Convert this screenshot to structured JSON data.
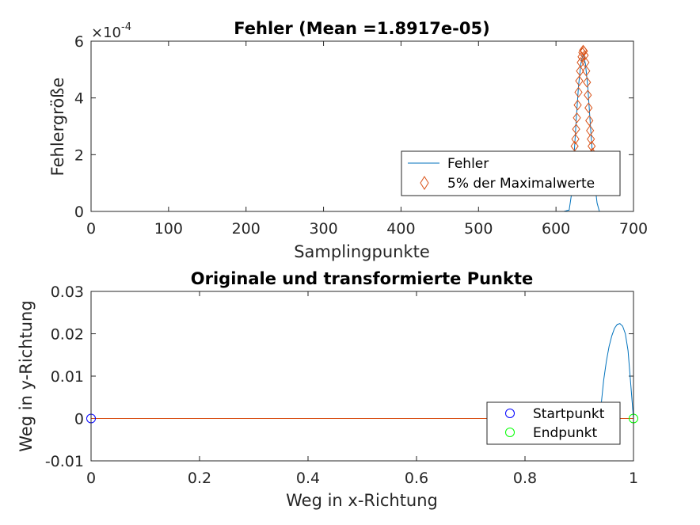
{
  "chart_data": [
    {
      "type": "line",
      "title": "Fehler (Mean =1.8917e-05)",
      "xlabel": "Samplingpunkte",
      "ylabel": "Fehlergröße",
      "y_exponent_base": "×10",
      "y_exponent_power": "-4",
      "xlim": [
        0,
        700
      ],
      "ylim": [
        0,
        6
      ],
      "xticks": [
        0,
        100,
        200,
        300,
        400,
        500,
        600,
        700
      ],
      "yticks": [
        0,
        2,
        4,
        6
      ],
      "xtick_labels": [
        "0",
        "100",
        "200",
        "300",
        "400",
        "500",
        "600",
        "700"
      ],
      "ytick_labels": [
        "0",
        "2",
        "4",
        "6"
      ],
      "legend_position": "bottom-right",
      "series": [
        {
          "name": "Fehler",
          "color": "#0072BD",
          "marker": "none",
          "x": [
            0,
            610,
            617,
            620,
            623,
            626,
            629,
            632,
            635,
            638,
            641,
            644,
            647,
            650,
            653,
            656,
            660,
            700
          ],
          "values": [
            0,
            0,
            0.05,
            0.6,
            1.8,
            3.2,
            4.4,
            5.2,
            5.55,
            5.2,
            4.4,
            3.2,
            2.0,
            1.0,
            0.3,
            0,
            0,
            0
          ]
        },
        {
          "name": "5% der Maximalwerte",
          "color": "#D95319",
          "marker": "diamond",
          "x": [
            624,
            625,
            626,
            627,
            628,
            629,
            630,
            631,
            632,
            633,
            634,
            635,
            636,
            637,
            638,
            639,
            640,
            641,
            642,
            643,
            644,
            645,
            646,
            647
          ],
          "values": [
            2.3,
            2.55,
            2.9,
            3.3,
            3.75,
            4.2,
            4.6,
            4.95,
            5.25,
            5.45,
            5.6,
            5.68,
            5.65,
            5.5,
            5.25,
            4.95,
            4.55,
            4.1,
            3.65,
            3.2,
            2.85,
            2.55,
            2.3,
            2.05
          ]
        }
      ]
    },
    {
      "type": "line",
      "title": "Originale und transformierte Punkte",
      "xlabel": "Weg in x-Richtung",
      "ylabel": "Weg in y-Richtung",
      "xlim": [
        0,
        1
      ],
      "ylim": [
        -0.01,
        0.03
      ],
      "xticks": [
        0,
        0.2,
        0.4,
        0.6,
        0.8,
        1
      ],
      "yticks": [
        -0.01,
        0,
        0.01,
        0.02,
        0.03
      ],
      "xtick_labels": [
        "0",
        "0.2",
        "0.4",
        "0.6",
        "0.8",
        "1"
      ],
      "ytick_labels": [
        "-0.01",
        "0",
        "0.01",
        "0.02",
        "0.03"
      ],
      "legend_position": "bottom-right",
      "series": [
        {
          "color": "#0072BD",
          "marker": "none",
          "x": [
            0,
            0.94,
            0.941,
            0.945,
            0.95,
            0.955,
            0.96,
            0.965,
            0.97,
            0.975,
            0.98,
            0.985,
            0.99,
            0.995,
            1.0
          ],
          "values": [
            0,
            0,
            0.004,
            0.009,
            0.0135,
            0.017,
            0.0195,
            0.0213,
            0.0222,
            0.0224,
            0.0218,
            0.02,
            0.016,
            0.008,
            0
          ]
        },
        {
          "color": "#D95319",
          "marker": "none",
          "x": [
            0,
            1
          ],
          "values": [
            0,
            0
          ]
        },
        {
          "name": "Startpunkt",
          "color": "#0000FF",
          "marker": "circle",
          "x": [
            0
          ],
          "values": [
            0
          ]
        },
        {
          "name": "Endpunkt",
          "color": "#00FF00",
          "marker": "circle",
          "x": [
            1
          ],
          "values": [
            0
          ]
        }
      ]
    }
  ]
}
